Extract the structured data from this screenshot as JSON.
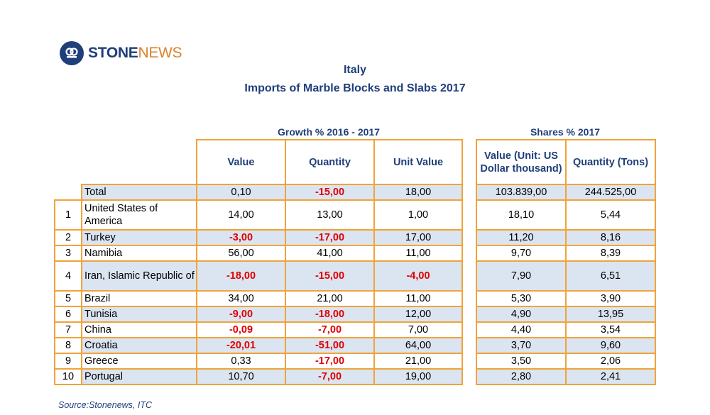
{
  "logo": {
    "stone": "STONE",
    "news": "NEWS"
  },
  "title": {
    "line1": "Italy",
    "line2": "Imports of Marble Blocks and Slabs 2017"
  },
  "groups": {
    "growth": "Growth % 2016 - 2017",
    "shares": "Shares % 2017"
  },
  "headers": {
    "value": "Value",
    "quantity": "Quantity",
    "unit_value": "Unit Value",
    "share_value": "Value (Unit: US Dollar thousand)",
    "share_quantity": "Quantity (Tons)"
  },
  "rows": [
    {
      "rank": "",
      "country": "Total",
      "value": "0,10",
      "quantity": "-15,00",
      "unit_value": "18,00",
      "share_value": "103.839,00",
      "share_quantity": "244.525,00"
    },
    {
      "rank": "1",
      "country": "United States of America",
      "value": "14,00",
      "quantity": "13,00",
      "unit_value": "1,00",
      "share_value": "18,10",
      "share_quantity": "5,44"
    },
    {
      "rank": "2",
      "country": "Turkey",
      "value": "-3,00",
      "quantity": "-17,00",
      "unit_value": "17,00",
      "share_value": "11,20",
      "share_quantity": "8,16"
    },
    {
      "rank": "3",
      "country": "Namibia",
      "value": "56,00",
      "quantity": "41,00",
      "unit_value": "11,00",
      "share_value": "9,70",
      "share_quantity": "8,39"
    },
    {
      "rank": "4",
      "country": "Iran, Islamic Republic of",
      "value": "-18,00",
      "quantity": "-15,00",
      "unit_value": "-4,00",
      "share_value": "7,90",
      "share_quantity": "6,51"
    },
    {
      "rank": "5",
      "country": "Brazil",
      "value": "34,00",
      "quantity": "21,00",
      "unit_value": "11,00",
      "share_value": "5,30",
      "share_quantity": "3,90"
    },
    {
      "rank": "6",
      "country": "Tunisia",
      "value": "-9,00",
      "quantity": "-18,00",
      "unit_value": "12,00",
      "share_value": "4,90",
      "share_quantity": "13,95"
    },
    {
      "rank": "7",
      "country": "China",
      "value": "-0,09",
      "quantity": "-7,00",
      "unit_value": "7,00",
      "share_value": "4,40",
      "share_quantity": "3,54"
    },
    {
      "rank": "8",
      "country": "Croatia",
      "value": "-20,01",
      "quantity": "-51,00",
      "unit_value": "64,00",
      "share_value": "3,70",
      "share_quantity": "9,60"
    },
    {
      "rank": "9",
      "country": "Greece",
      "value": "0,33",
      "quantity": "-17,00",
      "unit_value": "21,00",
      "share_value": "3,50",
      "share_quantity": "2,06"
    },
    {
      "rank": "10",
      "country": "Portugal",
      "value": "10,70",
      "quantity": "-7,00",
      "unit_value": "19,00",
      "share_value": "2,80",
      "share_quantity": "2,41"
    }
  ],
  "source": "Source:Stonenews, ITC",
  "colors": {
    "header_text": "#1f3f7a",
    "border": "#f0a33a",
    "shade": "#dbe5f1",
    "negative": "#e00000"
  }
}
